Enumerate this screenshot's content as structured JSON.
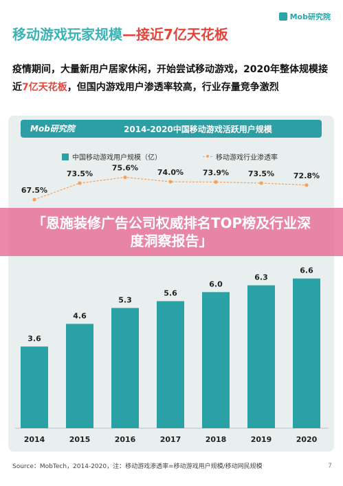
{
  "header": {
    "title_main": "移动游戏玩家规模",
    "title_highlight": "—接近7亿天花板",
    "brand": "Mob研究院"
  },
  "intro": {
    "part1": "疫情期间，大量新用户居家休闲，开始尝试移动游戏，2020年整体规模接近",
    "highlight": "7亿天花板",
    "part2": "，但国内游戏用户渗透率较高，行业存量竞争激烈"
  },
  "chart_header": {
    "logo": "Mob研究院",
    "title": "2014-2020中国移动游戏活跃用户规模"
  },
  "legend": {
    "bar_label": "中国移动游戏用户规模（亿）",
    "line_label": "移动游戏行业渗透率"
  },
  "overlay": {
    "text": "「恩施装修广告公司权威排名TOP榜及行业深度洞察报告」"
  },
  "footer": {
    "source": "Source：MobTech，2014-2020，注：移动游戏渗透率=移动游戏用户规模/移动网民规模",
    "page": "7"
  },
  "colors": {
    "bar": "#2aa1a5",
    "line": "#f5a15a",
    "accent": "#e0463c",
    "title": "#3bb3b5"
  },
  "chart_data": {
    "type": "bar",
    "title": "2014-2020中国移动游戏活跃用户规模",
    "categories": [
      "2014",
      "2015",
      "2016",
      "2017",
      "2018",
      "2019",
      "2020"
    ],
    "series": [
      {
        "name": "中国移动游戏用户规模（亿）",
        "type": "bar",
        "values": [
          3.6,
          4.6,
          5.3,
          5.6,
          6.0,
          6.3,
          6.6
        ],
        "labels": [
          "3.6",
          "4.6",
          "5.3",
          "5.6",
          "6.0",
          "6.3",
          "6.6"
        ]
      },
      {
        "name": "移动游戏行业渗透率",
        "type": "line",
        "values": [
          67.5,
          73.5,
          75.6,
          74.0,
          73.9,
          73.5,
          72.8
        ],
        "labels": [
          "67.5%",
          "73.5%",
          "75.6%",
          "74.0%",
          "73.9%",
          "73.5%",
          "72.8%"
        ]
      }
    ],
    "ylim_bar": [
      0,
      8.5
    ],
    "ylim_line": [
      60,
      80
    ],
    "legend_position": "top",
    "grid": false
  }
}
